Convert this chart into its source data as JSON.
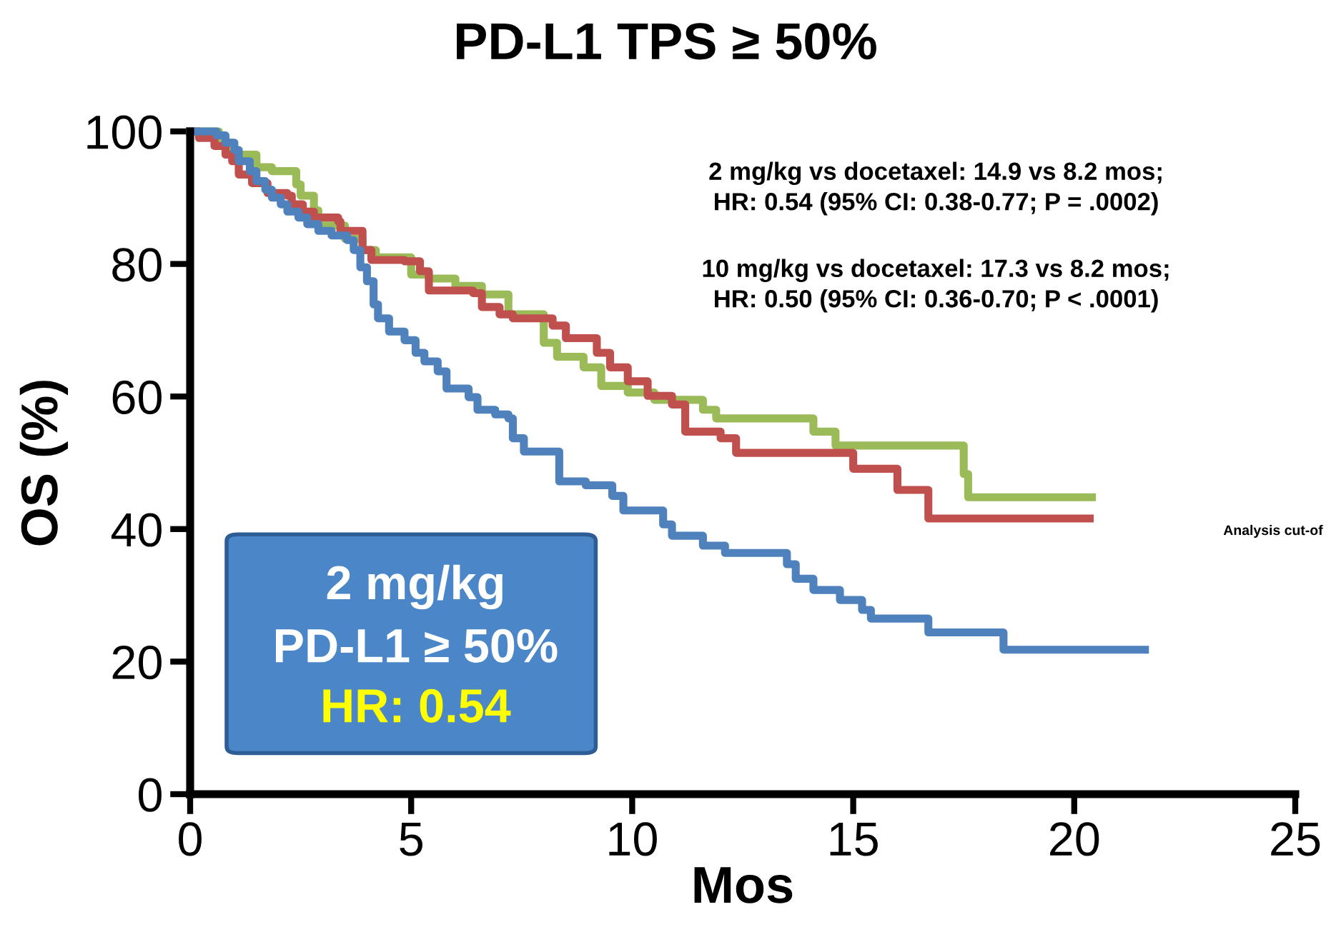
{
  "chart_data": {
    "type": "step",
    "title": "PD-L1 TPS ≥ 50%",
    "xlabel": "Mos",
    "ylabel": "OS (%)",
    "xlim": [
      0,
      25
    ],
    "ylim": [
      0,
      100
    ],
    "xticks": [
      0,
      5,
      10,
      15,
      20,
      25
    ],
    "yticks": [
      0,
      20,
      40,
      60,
      80,
      100
    ],
    "grid": false,
    "legend": false,
    "marker": "none",
    "line_style": "solid",
    "series": [
      {
        "color": "#9bbb59",
        "x": [
          0,
          0.65,
          0.97,
          1.5,
          1.85,
          2.4,
          2.5,
          2.8,
          2.9,
          3.5,
          3.9,
          4.2,
          5.0,
          5.4,
          6.0,
          6.6,
          7.2,
          8.0,
          8.3,
          8.9,
          9.3,
          9.9,
          10.5,
          11.6,
          11.9,
          14.1,
          14.6,
          15.5,
          17.5,
          17.6,
          17.8,
          20.4
        ],
        "values": [
          100,
          98.3,
          96.5,
          94.6,
          94,
          92,
          90.3,
          88.1,
          85.8,
          83.8,
          82.1,
          81,
          78.4,
          77.8,
          76.7,
          75.4,
          72.4,
          68.1,
          66,
          64.4,
          61.6,
          60.6,
          59.5,
          58,
          56.7,
          54.7,
          52.6,
          52.6,
          48.3,
          44.8,
          44.8,
          44.8
        ]
      },
      {
        "color": "#c0504d",
        "x": [
          0,
          0.2,
          0.55,
          0.8,
          0.95,
          1.1,
          1.4,
          1.75,
          2.2,
          2.3,
          2.55,
          2.8,
          3.35,
          3.4,
          3.9,
          4.1,
          4.85,
          5.2,
          5.4,
          6.4,
          6.6,
          7.0,
          7.3,
          8.2,
          8.5,
          9.2,
          9.5,
          9.9,
          10.35,
          10.9,
          11.2,
          12.0,
          12.35,
          15.0,
          16.0,
          16.7,
          20.35
        ],
        "values": [
          100,
          99,
          97.8,
          96.5,
          95.5,
          93.5,
          92.2,
          90.7,
          90.3,
          89,
          87.9,
          87,
          86.4,
          85,
          82.1,
          80.6,
          80.4,
          78.9,
          76,
          75.6,
          73.5,
          72.4,
          71.8,
          70.7,
          68.8,
          66.6,
          64.4,
          62.3,
          60.1,
          58.8,
          54.7,
          53.7,
          51.5,
          49.1,
          45.9,
          41.6,
          41.6
        ]
      },
      {
        "color": "#4f81bd",
        "x": [
          0,
          0.6,
          0.8,
          1.0,
          1.1,
          1.35,
          1.5,
          1.7,
          1.85,
          2.05,
          2.2,
          2.45,
          2.65,
          2.9,
          3.2,
          3.55,
          3.7,
          3.85,
          4.0,
          4.15,
          4.25,
          4.5,
          4.85,
          5.1,
          5.3,
          5.6,
          5.8,
          6.3,
          6.5,
          6.9,
          7.2,
          7.3,
          7.55,
          8.35,
          8.95,
          9.55,
          9.8,
          10.7,
          10.9,
          11.6,
          12.1,
          13.5,
          13.7,
          14.1,
          14.7,
          15.2,
          15.4,
          16.7,
          18.4,
          21.6
        ],
        "values": [
          100,
          99.4,
          98.3,
          97.2,
          95.5,
          94,
          92.5,
          91.2,
          90,
          89,
          87.9,
          87,
          86,
          85,
          84.3,
          83.6,
          82.1,
          79.5,
          77.4,
          73.9,
          71.8,
          69.8,
          68.5,
          66.6,
          65.3,
          63.8,
          61.2,
          59.9,
          58,
          57.3,
          56.7,
          53.7,
          51.7,
          47.2,
          46.6,
          45,
          42.8,
          40.7,
          39,
          37.5,
          36.4,
          34.7,
          32.5,
          30.8,
          29.3,
          27.8,
          26.5,
          24.4,
          21.8,
          21.8
        ]
      }
    ],
    "annotations": [
      "2 mg/kg vs docetaxel: 14.9 vs 8.2 mos;\nHR: 0.54 (95% CI: 0.38-0.77; P = .0002)",
      "10 mg/kg vs docetaxel: 17.3 vs 8.2 mos;\nHR: 0.50 (95% CI: 0.36-0.70; P < .0001)",
      "2 mg/kg",
      "PD-L1 ≥ 50%",
      "HR: 0.54",
      "Analysis cut-of"
    ]
  }
}
